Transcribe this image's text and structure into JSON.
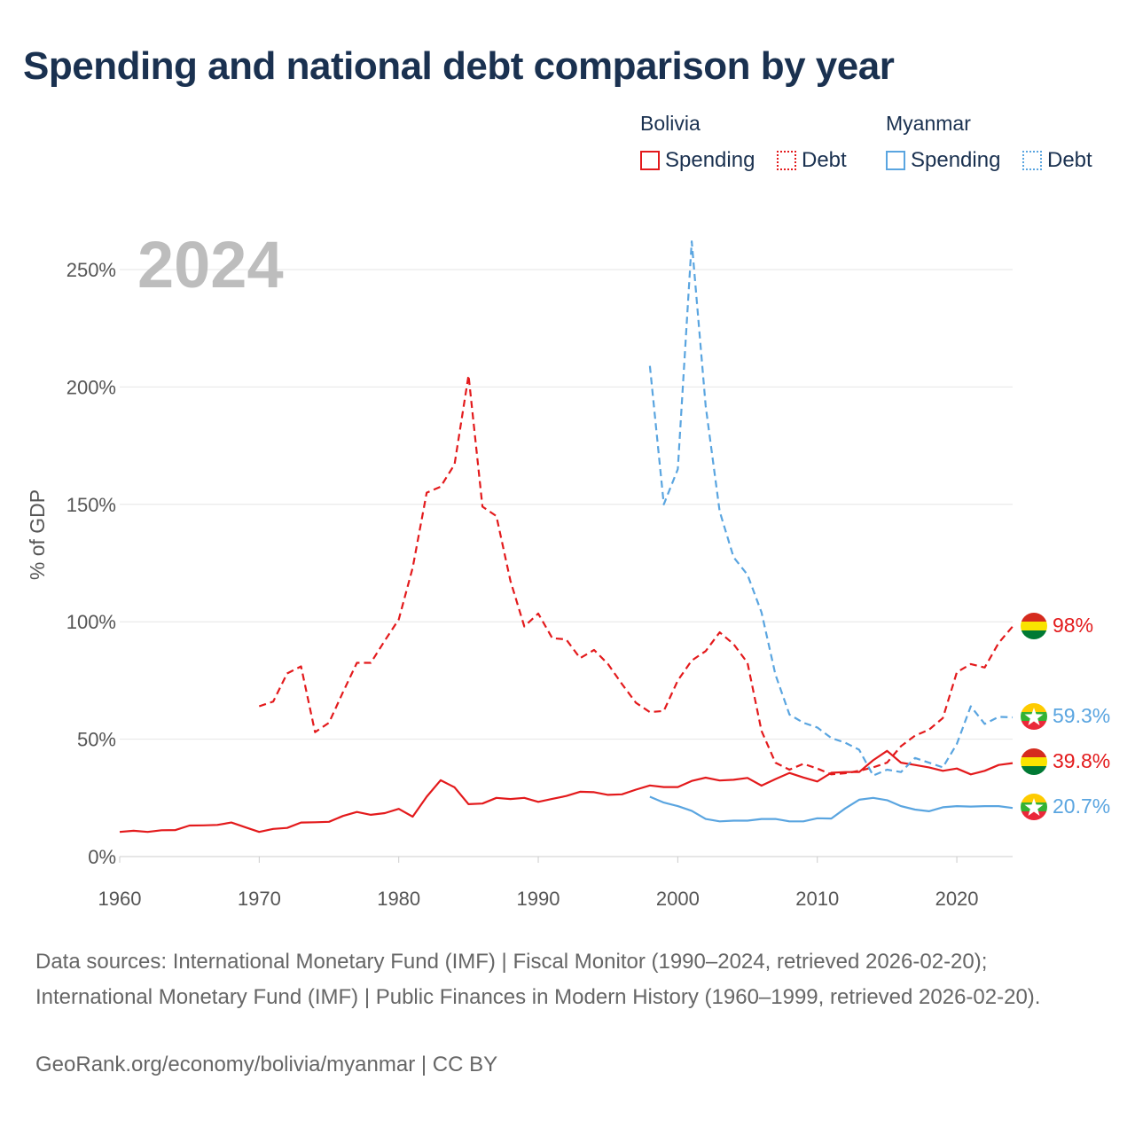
{
  "title": "Spending and national debt comparison by year",
  "legend": {
    "groups": [
      {
        "country": "Bolivia",
        "spending_label": "Spending",
        "debt_label": "Debt",
        "color": "#e31a1c"
      },
      {
        "country": "Myanmar",
        "spending_label": "Spending",
        "debt_label": "Debt",
        "color": "#5aa5e0"
      }
    ]
  },
  "chart_data": {
    "type": "line",
    "year_label": "2024",
    "ylabel": "% of GDP",
    "ylim": [
      0,
      260
    ],
    "xlim": [
      1960,
      2024
    ],
    "y_ticks": [
      0,
      50,
      100,
      150,
      200,
      250
    ],
    "y_tick_labels": [
      "0%",
      "50%",
      "100%",
      "150%",
      "200%",
      "250%"
    ],
    "x_ticks": [
      1960,
      1970,
      1980,
      1990,
      2000,
      2010,
      2020
    ],
    "x_tick_labels": [
      "1960",
      "1970",
      "1980",
      "1990",
      "2000",
      "2010",
      "2020"
    ],
    "series": [
      {
        "name": "Bolivia Spending",
        "country": "Bolivia",
        "style": "solid",
        "color": "#e31a1c",
        "end_label": "39.8%",
        "x": [
          1960,
          1961,
          1962,
          1963,
          1964,
          1965,
          1966,
          1967,
          1968,
          1969,
          1970,
          1971,
          1972,
          1973,
          1974,
          1975,
          1976,
          1977,
          1978,
          1979,
          1980,
          1981,
          1982,
          1983,
          1984,
          1985,
          1986,
          1987,
          1988,
          1989,
          1990,
          1991,
          1992,
          1993,
          1994,
          1995,
          1996,
          1997,
          1998,
          1999,
          2000,
          2001,
          2002,
          2003,
          2004,
          2005,
          2006,
          2007,
          2008,
          2009,
          2010,
          2011,
          2012,
          2013,
          2014,
          2015,
          2016,
          2017,
          2018,
          2019,
          2020,
          2021,
          2022,
          2023,
          2024
        ],
        "y": [
          10.5,
          11,
          10.5,
          11.2,
          11.3,
          13.2,
          13.3,
          13.5,
          14.5,
          12.5,
          10.5,
          11.8,
          12.2,
          14.5,
          14.6,
          14.8,
          17.3,
          19,
          17.8,
          18.5,
          20.3,
          17,
          25.5,
          32.5,
          29.5,
          22.3,
          22.6,
          25,
          24.5,
          25,
          23.3,
          24.6,
          25.8,
          27.6,
          27.4,
          26.3,
          26.5,
          28.5,
          30.3,
          29.6,
          29.6,
          32.2,
          33.6,
          32.4,
          32.7,
          33.5,
          30.2,
          33,
          35.6,
          33.7,
          32,
          35.7,
          36,
          36,
          41,
          45,
          40,
          39,
          38,
          36.5,
          37.5,
          35,
          36.5,
          39,
          39.8
        ]
      },
      {
        "name": "Bolivia Debt",
        "country": "Bolivia",
        "style": "dashed",
        "color": "#e31a1c",
        "end_label": "98%",
        "x": [
          1970,
          1971,
          1972,
          1973,
          1974,
          1975,
          1976,
          1977,
          1978,
          1979,
          1980,
          1981,
          1982,
          1983,
          1984,
          1985,
          1986,
          1987,
          1988,
          1989,
          1990,
          1991,
          1992,
          1993,
          1994,
          1995,
          1996,
          1997,
          1998,
          1999,
          2000,
          2001,
          2002,
          2003,
          2004,
          2005,
          2006,
          2007,
          2008,
          2009,
          2010,
          2011,
          2012,
          2013,
          2014,
          2015,
          2016,
          2017,
          2018,
          2019,
          2020,
          2021,
          2022,
          2023,
          2024
        ],
        "y": [
          64,
          66,
          78,
          81,
          53,
          57,
          70,
          82.5,
          82.5,
          92,
          101,
          123,
          155,
          157.5,
          167,
          205,
          149,
          145,
          117.5,
          98,
          103.5,
          93,
          92.5,
          84.5,
          88,
          82,
          73.5,
          65.5,
          61.5,
          62,
          75,
          83.5,
          87.5,
          95.5,
          90.5,
          82.5,
          53.5,
          40,
          37,
          39.5,
          37.5,
          35,
          35.5,
          36.5,
          38,
          40,
          47,
          51.5,
          54,
          59,
          78.5,
          82,
          80.5,
          91,
          98
        ]
      },
      {
        "name": "Myanmar Spending",
        "country": "Myanmar",
        "style": "solid",
        "color": "#5aa5e0",
        "end_label": "20.7%",
        "x": [
          1998,
          1999,
          2000,
          2001,
          2002,
          2003,
          2004,
          2005,
          2006,
          2007,
          2008,
          2009,
          2010,
          2011,
          2012,
          2013,
          2014,
          2015,
          2016,
          2017,
          2018,
          2019,
          2020,
          2021,
          2022,
          2023,
          2024
        ],
        "y": [
          25.5,
          23,
          21.5,
          19.5,
          16,
          15,
          15.3,
          15.3,
          16,
          16,
          15,
          15,
          16.3,
          16.2,
          20.5,
          24.2,
          25,
          24,
          21.5,
          20,
          19.3,
          21,
          21.5,
          21.3,
          21.5,
          21.5,
          20.7
        ]
      },
      {
        "name": "Myanmar Debt",
        "country": "Myanmar",
        "style": "dashed",
        "color": "#5aa5e0",
        "end_label": "59.3%",
        "x": [
          1998,
          1999,
          2000,
          2001,
          2002,
          2003,
          2004,
          2005,
          2006,
          2007,
          2008,
          2009,
          2010,
          2011,
          2012,
          2013,
          2014,
          2015,
          2016,
          2017,
          2018,
          2019,
          2020,
          2021,
          2022,
          2023,
          2024
        ],
        "y": [
          209,
          150,
          165,
          262,
          192,
          147,
          127.5,
          120,
          104,
          77.5,
          60.5,
          57,
          55,
          50.5,
          48.5,
          45.5,
          34.5,
          37,
          36,
          42,
          40,
          38,
          48,
          64,
          56.5,
          59.5,
          59.3
        ]
      }
    ]
  },
  "footer": {
    "sources": "Data sources: International Monetary Fund (IMF) | Fiscal Monitor (1990–2024, retrieved 2026-02-20); International Monetary Fund (IMF) | Public Finances in Modern History (1960–1999, retrieved 2026-02-20).",
    "credit": "GeoRank.org/economy/bolivia/myanmar | CC BY"
  }
}
